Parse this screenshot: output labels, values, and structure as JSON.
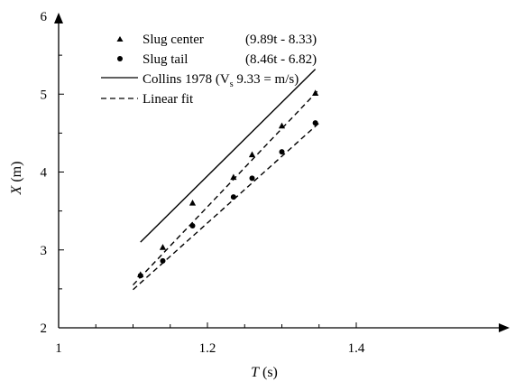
{
  "chart_data": {
    "type": "scatter",
    "title": "",
    "xlabel": {
      "symbol": "T",
      "unit": " (s)"
    },
    "ylabel": {
      "symbol": "X",
      "unit": " (m)"
    },
    "xlim": [
      1.0,
      1.4
    ],
    "ylim": [
      2,
      6
    ],
    "x_ticks": [
      1.0,
      1.2,
      1.4
    ],
    "x_tick_labels": [
      "1",
      "1.2",
      "1.4"
    ],
    "y_ticks": [
      2,
      3,
      4,
      5,
      6
    ],
    "y_tick_labels": [
      "2",
      "3",
      "4",
      "5",
      "6"
    ],
    "grid": false,
    "legend_position": "top-left",
    "series": [
      {
        "name": "Slug center",
        "equation": "(9.89t - 8.33)",
        "marker": "triangle",
        "color": "#000000",
        "x": [
          1.11,
          1.14,
          1.18,
          1.235,
          1.26,
          1.3,
          1.345
        ],
        "y": [
          2.68,
          3.03,
          3.6,
          3.93,
          4.22,
          4.59,
          5.01
        ]
      },
      {
        "name": "Slug tail",
        "equation": "(8.46t - 6.82)",
        "marker": "circle",
        "color": "#000000",
        "x": [
          1.11,
          1.14,
          1.18,
          1.235,
          1.26,
          1.3,
          1.345
        ],
        "y": [
          2.67,
          2.86,
          3.31,
          3.68,
          3.92,
          4.26,
          4.63
        ]
      }
    ],
    "lines": [
      {
        "name": "Collins 1978",
        "label_prefix": "Collins 1978 (V",
        "label_sub": "s",
        "label_suffix": " 9.33 = m/s)",
        "style": "solid",
        "x": [
          1.11,
          1.345
        ],
        "y": [
          3.1,
          5.32
        ]
      },
      {
        "name": "Linear fit",
        "style": "dashed",
        "fit_of": "Slug center",
        "x": [
          1.1,
          1.35
        ],
        "y": [
          2.55,
          5.06
        ]
      },
      {
        "name": "Linear fit",
        "style": "dashed",
        "fit_of": "Slug tail",
        "x": [
          1.1,
          1.35
        ],
        "y": [
          2.49,
          4.63
        ]
      }
    ],
    "legend": [
      {
        "key": "center",
        "symbol": "triangle",
        "label": "Slug center",
        "equation": "(9.89t - 8.33)"
      },
      {
        "key": "tail",
        "symbol": "circle",
        "label": "Slug tail",
        "equation": "(8.46t - 6.82)"
      },
      {
        "key": "collins",
        "symbol": "solid-line",
        "label": "Collins 1978 (V",
        "label_sub": "s",
        "label_suffix": " 9.33 = m/s)"
      },
      {
        "key": "fit",
        "symbol": "dashed-line",
        "label": "Linear fit"
      }
    ]
  }
}
